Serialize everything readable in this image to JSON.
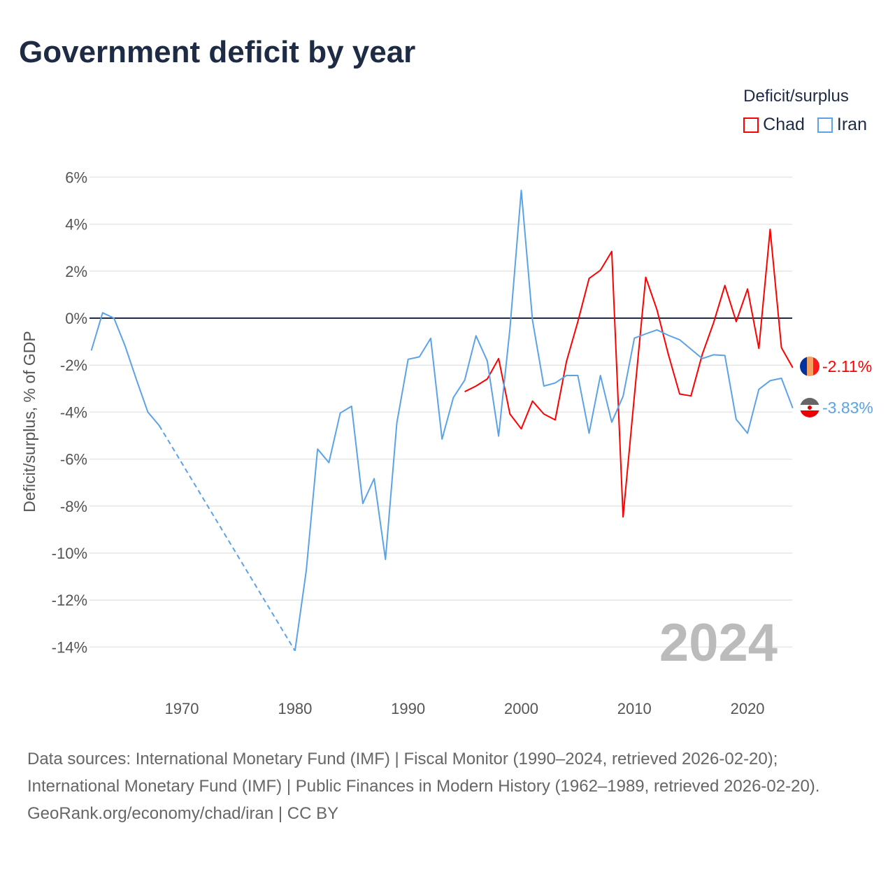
{
  "title": "Government deficit by year",
  "legend": {
    "title": "Deficit/surplus",
    "items": [
      {
        "label": "Chad",
        "color": "#ff0000"
      },
      {
        "label": "Iran",
        "color": "#5ba3e6"
      }
    ]
  },
  "year_watermark": "2024",
  "end_labels": {
    "chad": "-2.11%",
    "iran": "-3.83%"
  },
  "footer": {
    "sources": "Data sources: International Monetary Fund (IMF) | Fiscal Monitor (1990–2024, retrieved 2026-02-20); International Monetary Fund (IMF) | Public Finances in Modern History (1962–1989, retrieved 2026-02-20).",
    "credit": "GeoRank.org/economy/chad/iran | CC BY"
  },
  "chart_data": {
    "type": "line",
    "title": "Government deficit by year",
    "xlabel": "",
    "ylabel": "Deficit/surplus, % of GDP",
    "xlim": [
      1962,
      2024
    ],
    "ylim": [
      -14,
      6
    ],
    "xticks": [
      "1970",
      "1980",
      "1990",
      "2000",
      "2010",
      "2020"
    ],
    "yticks": [
      "6%",
      "4%",
      "2%",
      "0%",
      "-2%",
      "-4%",
      "-6%",
      "-8%",
      "-10%",
      "-12%",
      "-14%"
    ],
    "grid": true,
    "legend_position": "top-right",
    "series": [
      {
        "name": "Chad",
        "color": "#ff0000",
        "x": [
          1995,
          1996,
          1997,
          1998,
          1999,
          2000,
          2001,
          2002,
          2003,
          2004,
          2005,
          2006,
          2007,
          2008,
          2009,
          2010,
          2011,
          2012,
          2013,
          2014,
          2015,
          2016,
          2017,
          2018,
          2019,
          2020,
          2021,
          2022,
          2023,
          2024
        ],
        "y": [
          -3.13,
          -2.89,
          -2.59,
          -1.72,
          -4.08,
          -4.71,
          -3.53,
          -4.08,
          -4.33,
          -1.84,
          -0.15,
          1.69,
          2.04,
          2.84,
          -8.46,
          -3.3,
          1.74,
          0.35,
          -1.54,
          -3.23,
          -3.31,
          -1.54,
          -0.2,
          1.39,
          -0.15,
          1.24,
          -1.29,
          3.78,
          -1.26,
          -2.11
        ]
      },
      {
        "name": "Iran",
        "color": "#5ba3e6",
        "x": [
          1962,
          1963,
          1964,
          1965,
          1966,
          1967,
          1968,
          1980,
          1981,
          1982,
          1983,
          1984,
          1985,
          1986,
          1987,
          1988,
          1989,
          1990,
          1991,
          1992,
          1993,
          1994,
          1995,
          1996,
          1997,
          1998,
          1999,
          2000,
          2001,
          2002,
          2003,
          2004,
          2005,
          2006,
          2007,
          2008,
          2009,
          2010,
          2011,
          2012,
          2013,
          2014,
          2015,
          2016,
          2017,
          2018,
          2019,
          2020,
          2021,
          2022,
          2023,
          2024
        ],
        "y": [
          -1.38,
          0.23,
          0,
          -1.2,
          -2.63,
          -4.0,
          -4.57,
          -14.16,
          -10.75,
          -5.57,
          -6.15,
          -4.04,
          -3.75,
          -7.89,
          -6.83,
          -10.27,
          -4.47,
          -1.75,
          -1.65,
          -0.86,
          -5.15,
          -3.38,
          -2.64,
          -0.75,
          -1.82,
          -5.02,
          -0.45,
          5.44,
          -0.1,
          -2.89,
          -2.76,
          -2.44,
          -2.44,
          -4.9,
          -2.44,
          -4.43,
          -3.33,
          -0.85,
          -0.67,
          -0.5,
          -0.73,
          -0.92,
          -1.32,
          -1.72,
          -1.56,
          -1.59,
          -4.31,
          -4.9,
          -3.03,
          -2.66,
          -2.56,
          -3.83
        ]
      }
    ]
  }
}
